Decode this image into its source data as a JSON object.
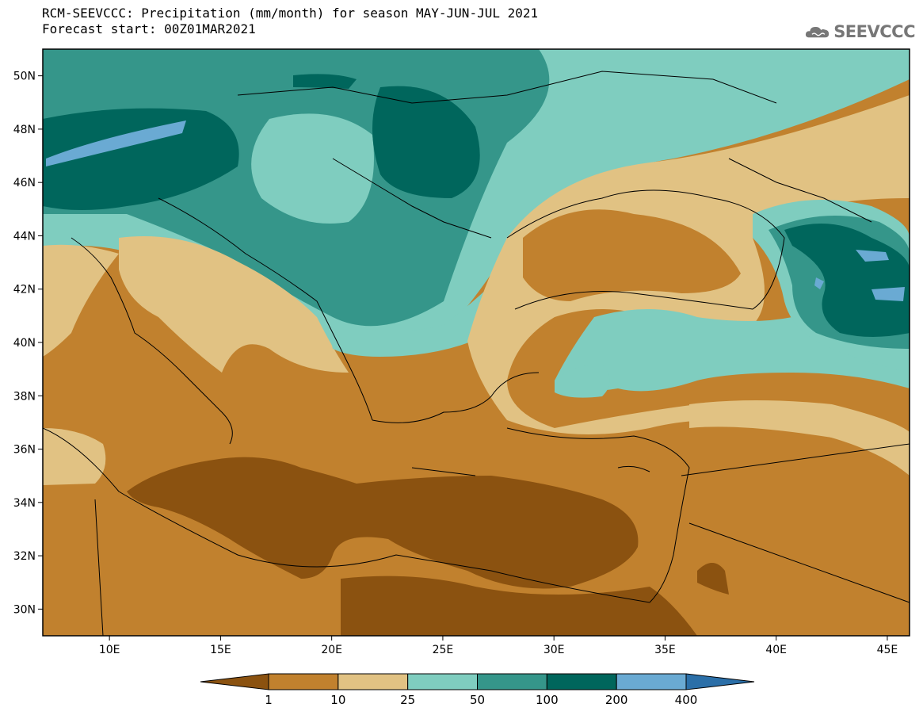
{
  "header": {
    "title_line1": "RCM-SEEVCCC: Precipitation (mm/month) for season MAY-JUN-JUL 2021",
    "title_line2": "Forecast start: 00Z01MAR2021"
  },
  "logo": {
    "text": "SEEVCCC",
    "icon": "cloud-icon"
  },
  "map": {
    "lon_range": [
      7,
      46
    ],
    "lat_range": [
      29,
      51
    ],
    "lat_ticks": [
      "50N",
      "48N",
      "46N",
      "44N",
      "42N",
      "40N",
      "38N",
      "36N",
      "34N",
      "32N",
      "30N"
    ],
    "lat_values": [
      50,
      48,
      46,
      44,
      42,
      40,
      38,
      36,
      34,
      32,
      30
    ],
    "lon_ticks": [
      "10E",
      "15E",
      "20E",
      "25E",
      "30E",
      "35E",
      "40E",
      "45E"
    ],
    "lon_values": [
      10,
      15,
      20,
      25,
      30,
      35,
      40,
      45
    ]
  },
  "colorbar": {
    "labels": [
      "1",
      "10",
      "25",
      "50",
      "100",
      "200",
      "400"
    ],
    "colors": [
      "#8b5210",
      "#c1812e",
      "#e1c283",
      "#7fcdbf",
      "#35968a",
      "#00665c",
      "#6aaad3",
      "#2b6fa8"
    ]
  },
  "colors": {
    "c1": "#8b5210",
    "c10": "#c1812e",
    "c25": "#e1c283",
    "c50": "#7fcdbf",
    "c100": "#35968a",
    "c200": "#00665c",
    "c400": "#6aaad3",
    "cmax": "#2b6fa8"
  }
}
